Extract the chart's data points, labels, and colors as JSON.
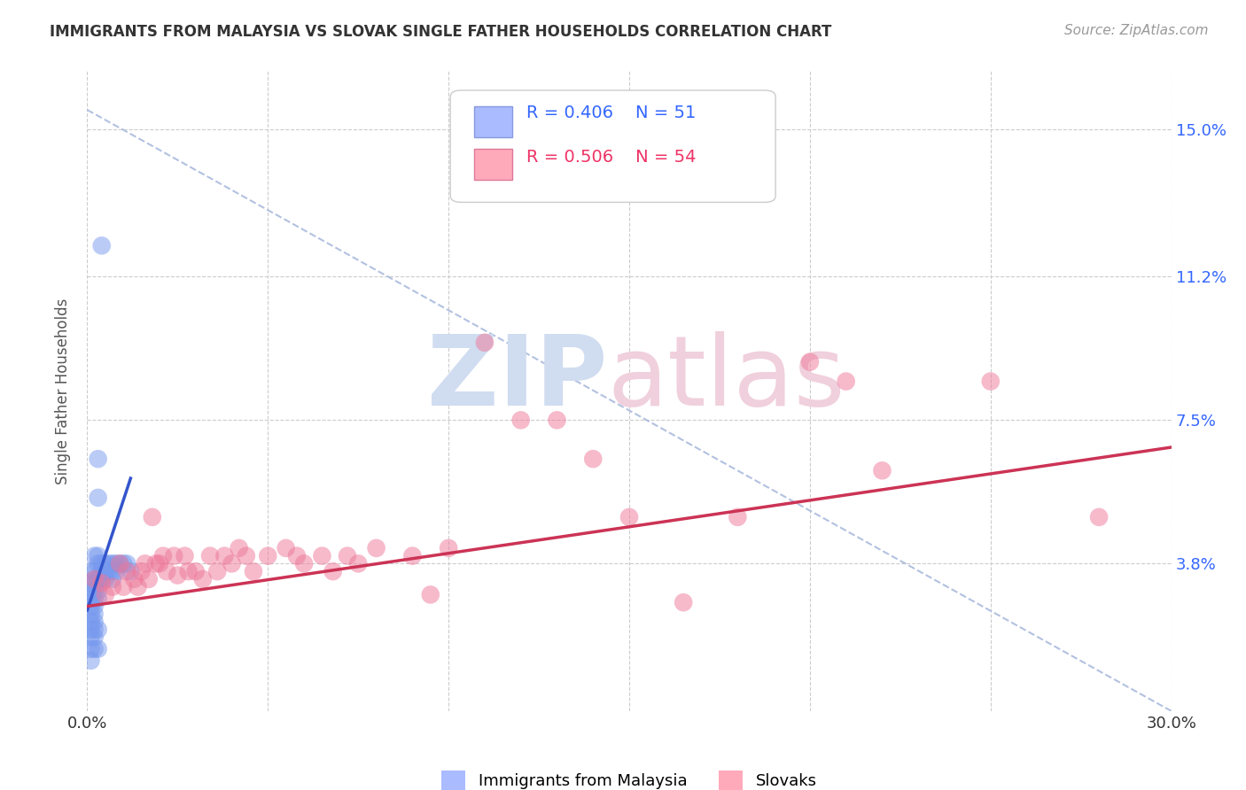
{
  "title": "IMMIGRANTS FROM MALAYSIA VS SLOVAK SINGLE FATHER HOUSEHOLDS CORRELATION CHART",
  "source": "Source: ZipAtlas.com",
  "ylabel": "Single Father Households",
  "xlim": [
    0.0,
    0.3
  ],
  "ylim": [
    0.0,
    0.165
  ],
  "xtick_positions": [
    0.0,
    0.05,
    0.1,
    0.15,
    0.2,
    0.25,
    0.3
  ],
  "xticklabels": [
    "0.0%",
    "",
    "",
    "",
    "",
    "",
    "30.0%"
  ],
  "ytick_values": [
    0.038,
    0.075,
    0.112,
    0.15
  ],
  "ytick_labels": [
    "3.8%",
    "7.5%",
    "11.2%",
    "15.0%"
  ],
  "grid_color": "#cccccc",
  "background_color": "#ffffff",
  "series1_color": "#7799ee",
  "series2_color": "#ee7799",
  "series1_label": "Immigrants from Malaysia",
  "series2_label": "Slovaks",
  "legend_r1": "R = 0.406",
  "legend_n1": "N = 51",
  "legend_r2": "R = 0.506",
  "legend_n2": "N = 54",
  "blue_scatter": [
    [
      0.004,
      0.12
    ],
    [
      0.003,
      0.065
    ],
    [
      0.003,
      0.055
    ],
    [
      0.002,
      0.04
    ],
    [
      0.003,
      0.04
    ],
    [
      0.003,
      0.038
    ],
    [
      0.004,
      0.038
    ],
    [
      0.005,
      0.038
    ],
    [
      0.004,
      0.036
    ],
    [
      0.005,
      0.036
    ],
    [
      0.006,
      0.038
    ],
    [
      0.006,
      0.036
    ],
    [
      0.007,
      0.038
    ],
    [
      0.007,
      0.036
    ],
    [
      0.007,
      0.034
    ],
    [
      0.008,
      0.038
    ],
    [
      0.008,
      0.036
    ],
    [
      0.009,
      0.038
    ],
    [
      0.01,
      0.038
    ],
    [
      0.011,
      0.038
    ],
    [
      0.012,
      0.036
    ],
    [
      0.001,
      0.036
    ],
    [
      0.002,
      0.036
    ],
    [
      0.002,
      0.034
    ],
    [
      0.003,
      0.034
    ],
    [
      0.004,
      0.034
    ],
    [
      0.005,
      0.034
    ],
    [
      0.001,
      0.033
    ],
    [
      0.002,
      0.033
    ],
    [
      0.003,
      0.033
    ],
    [
      0.001,
      0.031
    ],
    [
      0.002,
      0.031
    ],
    [
      0.003,
      0.031
    ],
    [
      0.001,
      0.029
    ],
    [
      0.002,
      0.029
    ],
    [
      0.003,
      0.029
    ],
    [
      0.001,
      0.027
    ],
    [
      0.002,
      0.027
    ],
    [
      0.001,
      0.025
    ],
    [
      0.002,
      0.025
    ],
    [
      0.001,
      0.023
    ],
    [
      0.002,
      0.023
    ],
    [
      0.001,
      0.021
    ],
    [
      0.002,
      0.021
    ],
    [
      0.003,
      0.021
    ],
    [
      0.001,
      0.019
    ],
    [
      0.002,
      0.019
    ],
    [
      0.001,
      0.016
    ],
    [
      0.002,
      0.016
    ],
    [
      0.003,
      0.016
    ],
    [
      0.001,
      0.013
    ]
  ],
  "pink_scatter": [
    [
      0.002,
      0.034
    ],
    [
      0.004,
      0.033
    ],
    [
      0.005,
      0.03
    ],
    [
      0.007,
      0.032
    ],
    [
      0.009,
      0.038
    ],
    [
      0.01,
      0.032
    ],
    [
      0.011,
      0.036
    ],
    [
      0.013,
      0.034
    ],
    [
      0.014,
      0.032
    ],
    [
      0.015,
      0.036
    ],
    [
      0.016,
      0.038
    ],
    [
      0.017,
      0.034
    ],
    [
      0.018,
      0.05
    ],
    [
      0.019,
      0.038
    ],
    [
      0.02,
      0.038
    ],
    [
      0.021,
      0.04
    ],
    [
      0.022,
      0.036
    ],
    [
      0.024,
      0.04
    ],
    [
      0.025,
      0.035
    ],
    [
      0.027,
      0.04
    ],
    [
      0.028,
      0.036
    ],
    [
      0.03,
      0.036
    ],
    [
      0.032,
      0.034
    ],
    [
      0.034,
      0.04
    ],
    [
      0.036,
      0.036
    ],
    [
      0.038,
      0.04
    ],
    [
      0.04,
      0.038
    ],
    [
      0.042,
      0.042
    ],
    [
      0.044,
      0.04
    ],
    [
      0.046,
      0.036
    ],
    [
      0.05,
      0.04
    ],
    [
      0.055,
      0.042
    ],
    [
      0.058,
      0.04
    ],
    [
      0.06,
      0.038
    ],
    [
      0.065,
      0.04
    ],
    [
      0.068,
      0.036
    ],
    [
      0.072,
      0.04
    ],
    [
      0.075,
      0.038
    ],
    [
      0.08,
      0.042
    ],
    [
      0.09,
      0.04
    ],
    [
      0.095,
      0.03
    ],
    [
      0.1,
      0.042
    ],
    [
      0.11,
      0.095
    ],
    [
      0.12,
      0.075
    ],
    [
      0.13,
      0.075
    ],
    [
      0.14,
      0.065
    ],
    [
      0.15,
      0.05
    ],
    [
      0.165,
      0.028
    ],
    [
      0.18,
      0.05
    ],
    [
      0.2,
      0.09
    ],
    [
      0.21,
      0.085
    ],
    [
      0.22,
      0.062
    ],
    [
      0.25,
      0.085
    ],
    [
      0.28,
      0.05
    ]
  ],
  "blue_line_x": [
    0.0,
    0.012
  ],
  "blue_line_y": [
    0.026,
    0.06
  ],
  "pink_line_x": [
    0.0,
    0.3
  ],
  "pink_line_y": [
    0.027,
    0.068
  ],
  "diag_line_x": [
    0.025,
    0.3
  ],
  "diag_line_y": [
    0.15,
    0.015
  ],
  "diag_color": "#aabbdd",
  "diag_style": "--"
}
